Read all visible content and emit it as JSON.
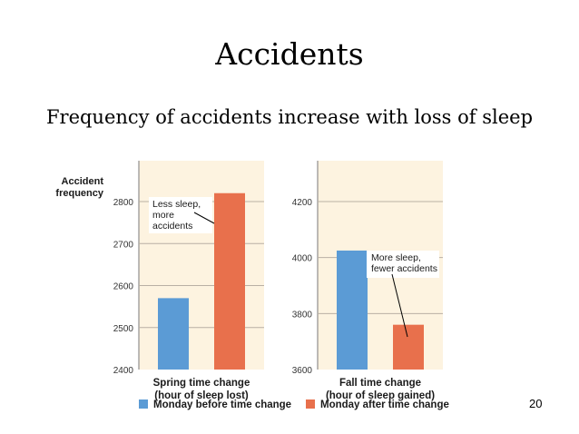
{
  "slide": {
    "title": "Accidents",
    "subtitle": "Frequency of accidents increase with loss of sleep",
    "page_number": "20"
  },
  "figure": {
    "ylabel_lines": [
      "Accident",
      "frequency"
    ],
    "legend": [
      {
        "label": "Monday before time change",
        "color": "#5b9bd5"
      },
      {
        "label": "Monday after time change",
        "color": "#e8704c"
      }
    ]
  },
  "colors": {
    "panel_bg": "#fdf3e0",
    "gridline": "#b9b0a4",
    "axis": "#7a7a7a",
    "tick_text": "#333333",
    "label_text": "#1a1a1a"
  },
  "chart_data": [
    {
      "type": "bar",
      "xlabel_lines": [
        "Spring time change",
        "(hour of sleep lost)"
      ],
      "ylim": [
        2400,
        2800
      ],
      "yticks": [
        2400,
        2500,
        2600,
        2700,
        2800
      ],
      "grid": true,
      "series": [
        {
          "name": "Monday before time change",
          "values": [
            2570
          ],
          "color": "#5b9bd5"
        },
        {
          "name": "Monday after time change",
          "values": [
            2820
          ],
          "color": "#e8704c"
        }
      ],
      "annotation_lines": [
        "Less sleep,",
        "more",
        "accidents"
      ]
    },
    {
      "type": "bar",
      "xlabel_lines": [
        "Fall time change",
        "(hour of sleep gained)"
      ],
      "ylim": [
        3600,
        4200
      ],
      "yticks": [
        3600,
        3800,
        4000,
        4200
      ],
      "grid": true,
      "series": [
        {
          "name": "Monday before time change",
          "values": [
            4025
          ],
          "color": "#5b9bd5"
        },
        {
          "name": "Monday after time change",
          "values": [
            3760
          ],
          "color": "#e8704c"
        }
      ],
      "annotation_lines": [
        "More sleep,",
        "fewer accidents"
      ]
    }
  ]
}
